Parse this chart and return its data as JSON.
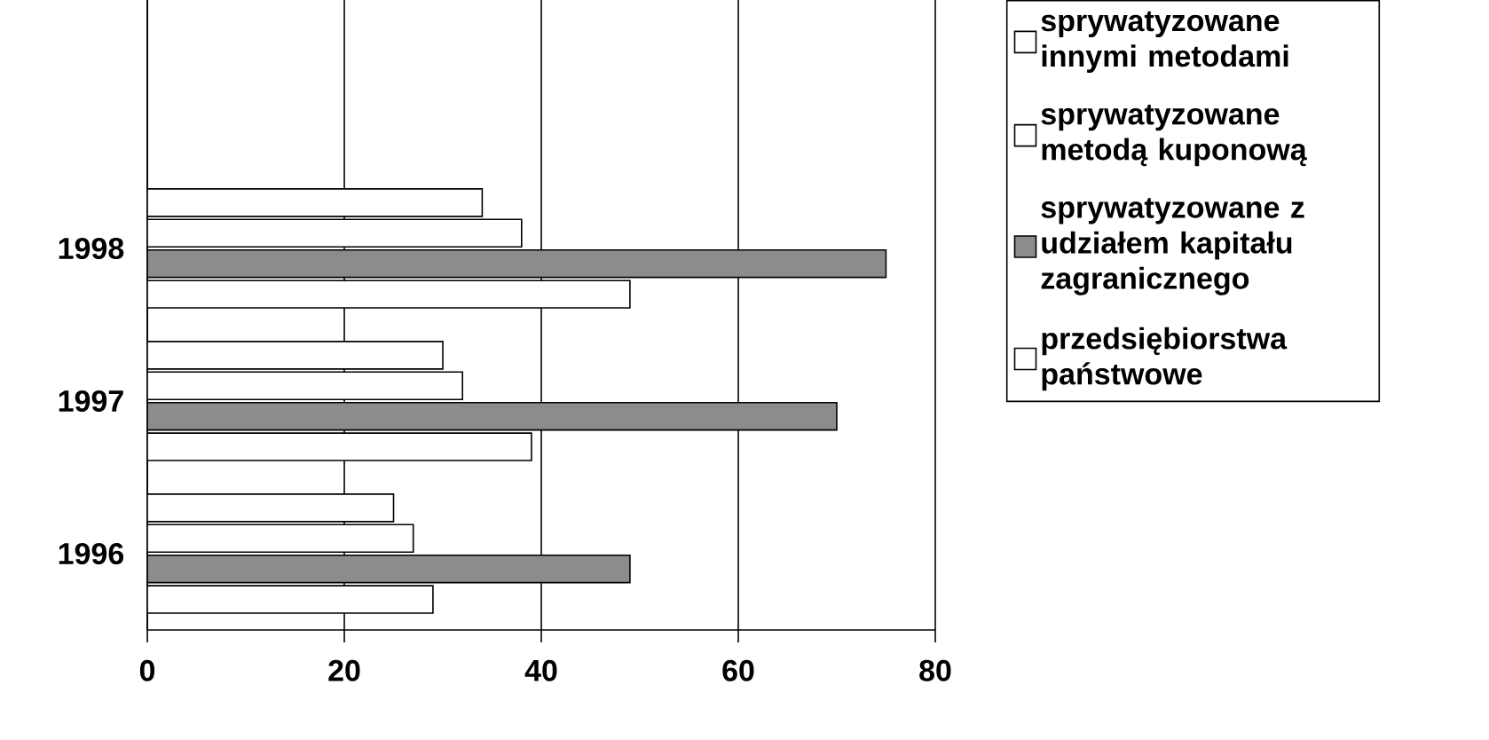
{
  "chart_data": {
    "type": "bar",
    "orientation": "horizontal",
    "categories": [
      "1998",
      "1997",
      "1996"
    ],
    "series": [
      {
        "name": "sprywatyzowane innymi metodami",
        "color": "#ffffff",
        "values": [
          34,
          30,
          25
        ]
      },
      {
        "name": "sprywatyzowane metodą kuponową",
        "color": "#ffffff",
        "values": [
          38,
          32,
          27
        ]
      },
      {
        "name": "sprywatyzowane z udziałem kapitału zagranicznego",
        "color": "#8c8c8c",
        "values": [
          75,
          70,
          49
        ]
      },
      {
        "name": "przedsiębiorstwa państwowe",
        "color": "#ffffff",
        "values": [
          49,
          39,
          29
        ]
      }
    ],
    "xlim": [
      0,
      80
    ],
    "xticks": [
      0,
      20,
      40,
      60,
      80
    ],
    "grid": "x",
    "legend": "right"
  }
}
